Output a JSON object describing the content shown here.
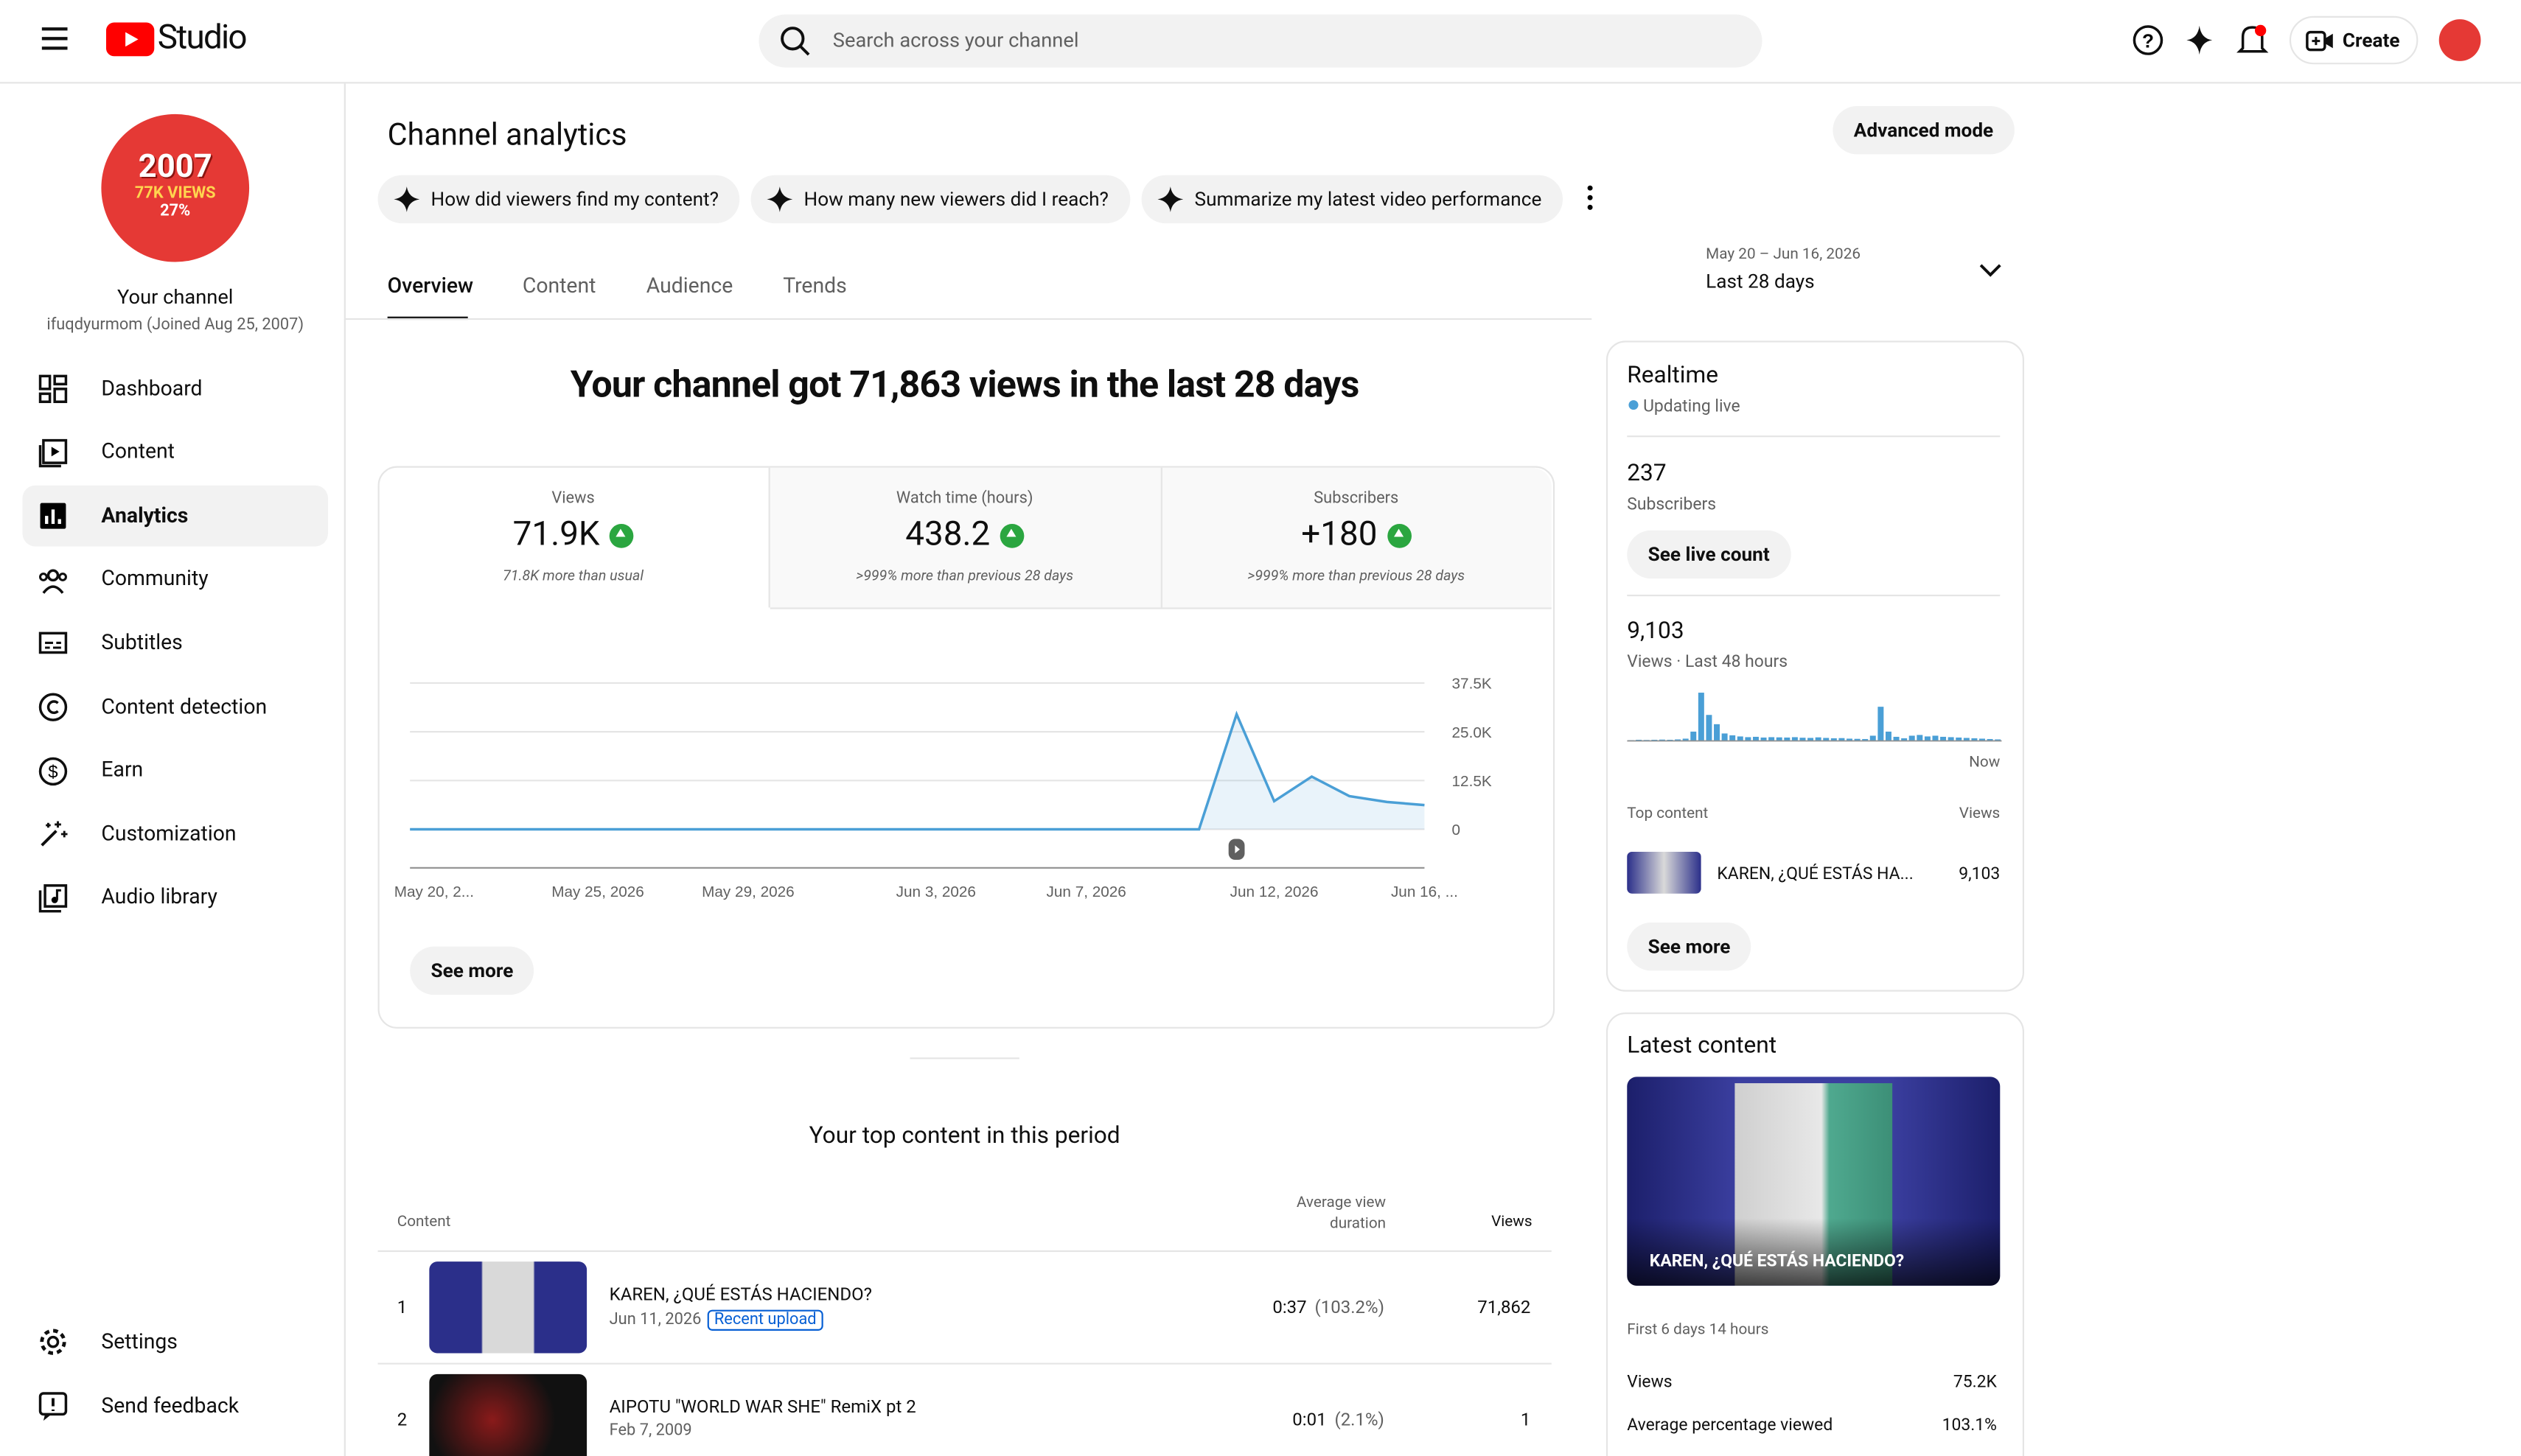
{
  "header": {
    "logo": "Studio",
    "search_placeholder": "Search across your channel",
    "create": "Create"
  },
  "sidebar": {
    "channel_art": {
      "year": "2007",
      "views": "77K VIEWS",
      "pct": "27%"
    },
    "channel_name": "Your channel",
    "channel_handle": "ifuqdyurmom (Joined Aug 25, 2007)",
    "nav": [
      "Dashboard",
      "Content",
      "Analytics",
      "Community",
      "Subtitles",
      "Content detection",
      "Earn",
      "Customization",
      "Audio library"
    ],
    "footer_nav": [
      "Settings",
      "Send feedback"
    ]
  },
  "analytics": {
    "title": "Channel analytics",
    "advanced_mode": "Advanced mode",
    "prompts": [
      "How did viewers find my content?",
      "How many new viewers did I reach?",
      "Summarize my latest video performance"
    ],
    "tabs": [
      "Overview",
      "Content",
      "Audience",
      "Trends"
    ],
    "date_range": "May 20 – Jun 16, 2026",
    "period": "Last 28 days",
    "headline": "Your channel got 71,863 views in the last 28 days",
    "metrics": [
      {
        "label": "Views",
        "value": "71.9K",
        "note": "71.8K more than usual"
      },
      {
        "label": "Watch time (hours)",
        "value": "438.2",
        "note": ">999% more than previous 28 days"
      },
      {
        "label": "Subscribers",
        "value": "+180",
        "note": ">999% more than previous 28 days"
      }
    ],
    "chart": {
      "type": "line",
      "x": [
        "May 20, 2...",
        null,
        null,
        null,
        null,
        "May 25, 2026",
        null,
        null,
        null,
        "May 29, 2026",
        null,
        null,
        null,
        null,
        "Jun 3, 2026",
        null,
        null,
        null,
        "Jun 7, 2026",
        null,
        null,
        null,
        null,
        "Jun 12, 2026",
        null,
        null,
        null,
        "Jun 16, ..."
      ],
      "values": [
        0,
        0,
        0,
        0,
        0,
        0,
        0,
        0,
        0,
        0,
        0,
        0,
        0,
        0,
        0,
        0,
        0,
        0,
        0,
        0,
        0,
        0,
        29500,
        7200,
        13500,
        8500,
        7000,
        6200
      ],
      "color": "#4a9fd6",
      "ylim": [
        0,
        37500
      ],
      "yticks": [
        0,
        {
          "value": 12500,
          "label": "12.5K"
        },
        {
          "value": 25000,
          "label": "25.0K"
        },
        {
          "value": 37500,
          "label": "37.5K"
        }
      ],
      "grid": true
    },
    "see_more": "See more",
    "top_content": {
      "title": "Your top content in this period",
      "headers": [
        "Content",
        "Average view duration",
        "Views"
      ],
      "rows": [
        {
          "rank": "1",
          "title": "KAREN, ¿QUÉ ESTÁS HACIENDO?",
          "date": "Jun 11, 2026",
          "badge": "Recent upload",
          "duration": "0:37",
          "pct": "(103.2%)",
          "views": "71,862"
        },
        {
          "rank": "2",
          "title": "AIPOTU \"WORLD WAR SHE\" RemiX pt 2",
          "date": "Feb 7, 2009",
          "duration": "0:01",
          "pct": "(2.1%)",
          "views": "1"
        }
      ]
    }
  },
  "realtime": {
    "title": "Realtime",
    "status": "Updating live",
    "subscribers": "237",
    "subscribers_label": "Subscribers",
    "see_live_count": "See live count",
    "views": "9,103",
    "views_label": "Views · Last 48 hours",
    "bars": [
      20,
      30,
      25,
      30,
      35,
      30,
      40,
      60,
      250,
      1300,
      700,
      450,
      200,
      150,
      120,
      100,
      110,
      90,
      100,
      95,
      90,
      100,
      85,
      80,
      95,
      80,
      70,
      75,
      60,
      55,
      50,
      140,
      920,
      250,
      110,
      70,
      140,
      160,
      120,
      140,
      110,
      100,
      90,
      80,
      70,
      60,
      50,
      40
    ],
    "now": "Now",
    "top_content_label": "Top content",
    "views_header": "Views",
    "item_title": "KAREN, ¿QUÉ ESTÁS HA...",
    "item_views": "9,103",
    "see_more": "See more"
  },
  "latest": {
    "title": "Latest content",
    "video_title": "KAREN, ¿QUÉ ESTÁS HACIENDO?",
    "since": "First 6 days 14 hours",
    "stats": [
      [
        "Views",
        "75.2K"
      ],
      [
        "Average percentage viewed",
        "103.1%"
      ]
    ]
  }
}
